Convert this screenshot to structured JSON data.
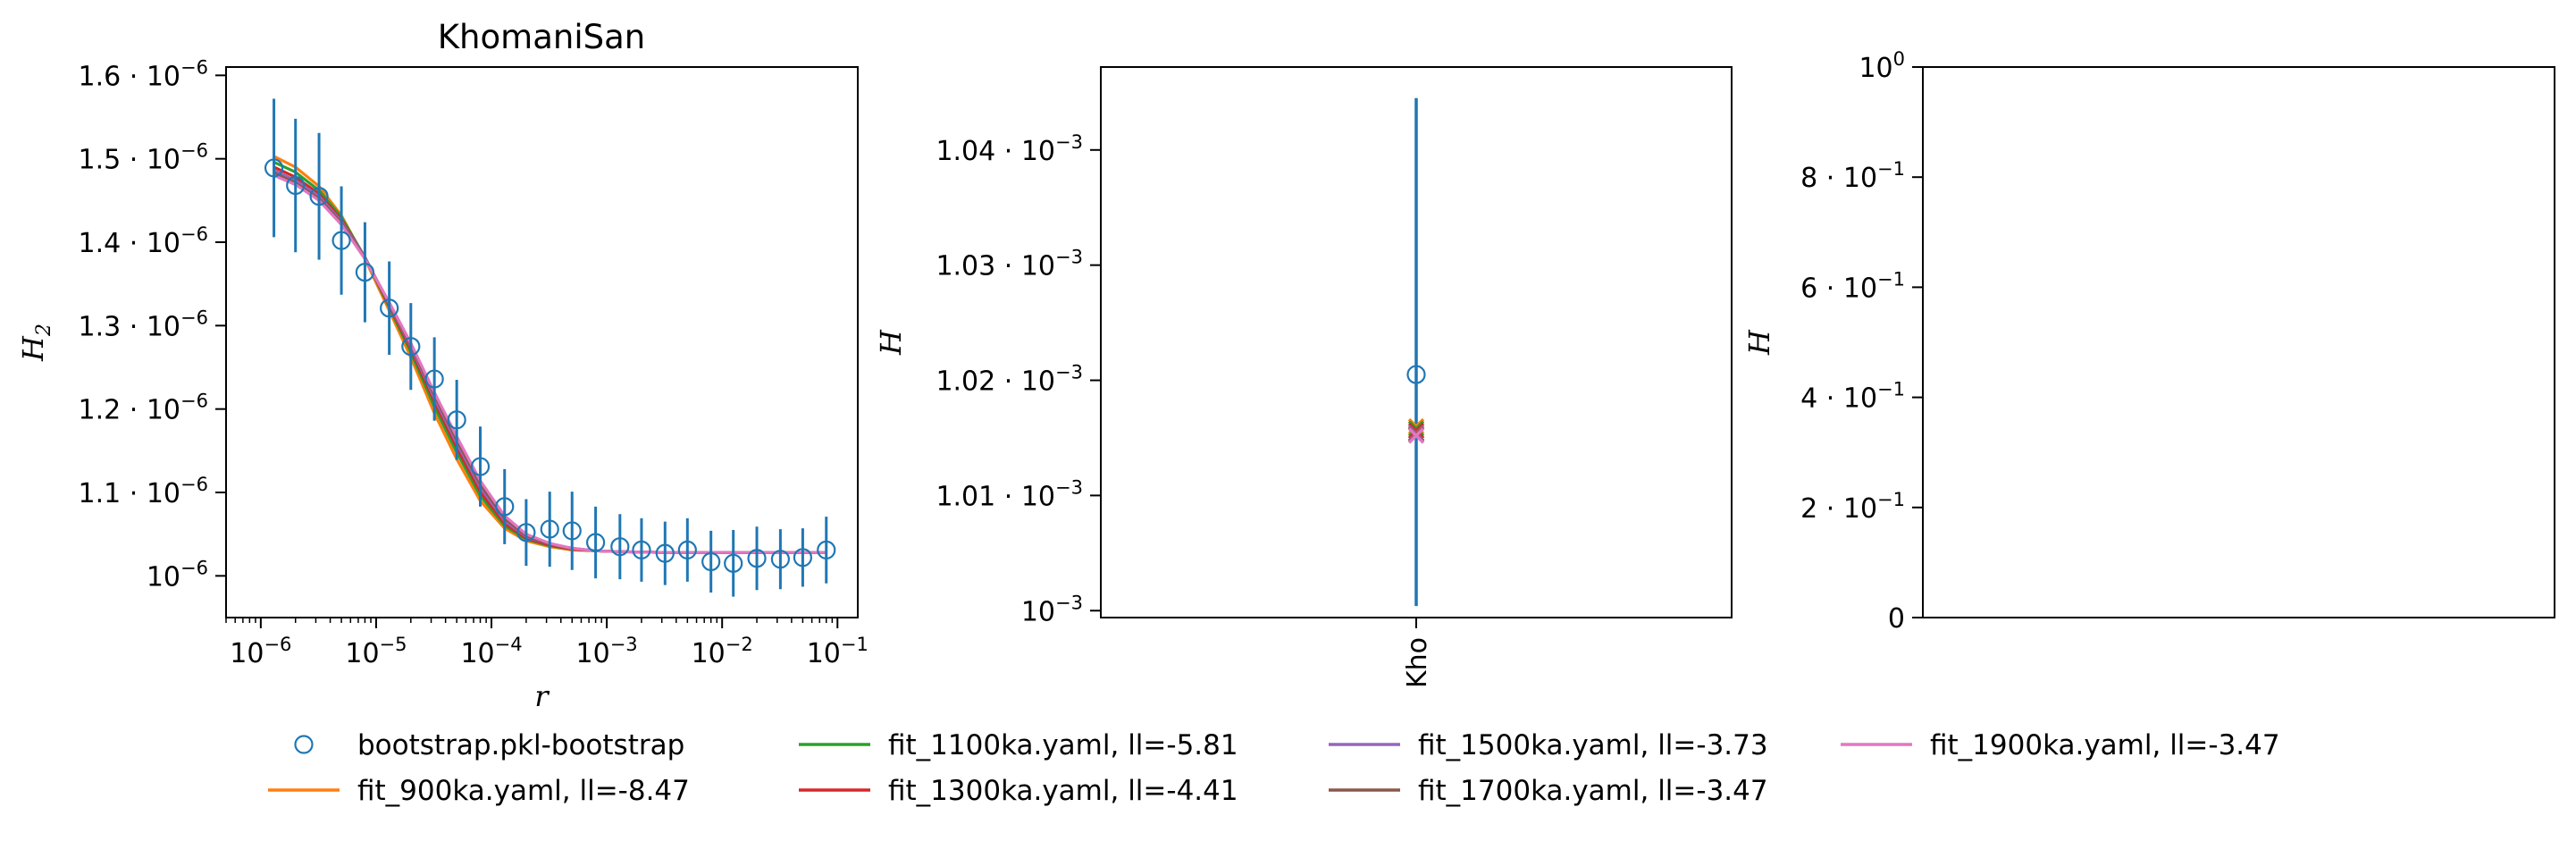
{
  "chart_data": [
    {
      "type": "line",
      "title": "KhomaniSan",
      "xlabel": "r",
      "ylabel": "H",
      "ylabel_sub": "2",
      "xscale": "log",
      "xlim": [
        5e-07,
        0.15
      ],
      "ylim": [
        9.5e-07,
        1.61e-06
      ],
      "xticks": [
        {
          "value": 1e-06,
          "mant": "10",
          "exp": "−6"
        },
        {
          "value": 1e-05,
          "mant": "10",
          "exp": "−5"
        },
        {
          "value": 0.0001,
          "mant": "10",
          "exp": "−4"
        },
        {
          "value": 0.001,
          "mant": "10",
          "exp": "−3"
        },
        {
          "value": 0.01,
          "mant": "10",
          "exp": "−2"
        },
        {
          "value": 0.1,
          "mant": "10",
          "exp": "−1"
        }
      ],
      "yticks": [
        {
          "value": 1e-06,
          "mant": "10",
          "exp": "−6"
        },
        {
          "value": 1.1e-06,
          "mant": "1.1 · 10",
          "exp": "−6"
        },
        {
          "value": 1.2e-06,
          "mant": "1.2 · 10",
          "exp": "−6"
        },
        {
          "value": 1.3e-06,
          "mant": "1.3 · 10",
          "exp": "−6"
        },
        {
          "value": 1.4e-06,
          "mant": "1.4 · 10",
          "exp": "−6"
        },
        {
          "value": 1.5e-06,
          "mant": "1.5 · 10",
          "exp": "−6"
        },
        {
          "value": 1.6e-06,
          "mant": "1.6 · 10",
          "exp": "−6"
        }
      ],
      "data": {
        "name": "bootstrap.pkl-bootstrap",
        "color": "#1f77b4",
        "x": [
          1.3e-06,
          2e-06,
          3.2e-06,
          5e-06,
          8e-06,
          1.3e-05,
          2e-05,
          3.2e-05,
          5e-05,
          8e-05,
          0.00013,
          0.0002,
          0.00032,
          0.0005,
          0.0008,
          0.0013,
          0.002,
          0.0032,
          0.005,
          0.008,
          0.0125,
          0.02,
          0.032,
          0.05,
          0.08
        ],
        "y": [
          1.489e-06,
          1.468e-06,
          1.455e-06,
          1.402e-06,
          1.364e-06,
          1.321e-06,
          1.275e-06,
          1.236e-06,
          1.187e-06,
          1.131e-06,
          1.083e-06,
          1.052e-06,
          1.056e-06,
          1.054e-06,
          1.04e-06,
          1.035e-06,
          1.031e-06,
          1.027e-06,
          1.031e-06,
          1.017e-06,
          1.015e-06,
          1.021e-06,
          1.02e-06,
          1.022e-06,
          1.031e-06
        ],
        "yerr": [
          8.3e-08,
          8e-08,
          7.6e-08,
          6.5e-08,
          6e-08,
          5.6e-08,
          5.2e-08,
          5e-08,
          4.8e-08,
          4.8e-08,
          4.5e-08,
          4e-08,
          4.5e-08,
          4.7e-08,
          4.3e-08,
          3.9e-08,
          3.8e-08,
          3.8e-08,
          3.8e-08,
          3.7e-08,
          4e-08,
          3.8e-08,
          3.6e-08,
          3.5e-08,
          4e-08
        ]
      },
      "fit_x": [
        1.3e-06,
        2e-06,
        3.2e-06,
        5e-06,
        8e-06,
        1.3e-05,
        2e-05,
        3.2e-05,
        5e-05,
        8e-05,
        0.00013,
        0.0002,
        0.00032,
        0.0005,
        0.0008,
        0.0013,
        0.0032,
        0.01,
        0.032,
        0.08
      ],
      "fits": [
        {
          "name": "fit_900ka.yaml, ll=-8.47",
          "color": "#ff7f0e",
          "y": [
            1.503e-06,
            1.49e-06,
            1.467e-06,
            1.432e-06,
            1.38e-06,
            1.318e-06,
            1.262e-06,
            1.195e-06,
            1.14e-06,
            1.09e-06,
            1.057e-06,
            1.042e-06,
            1.035e-06,
            1.031e-06,
            1.03e-06,
            1.029e-06,
            1.028e-06,
            1.028e-06,
            1.028e-06,
            1.028e-06
          ]
        },
        {
          "name": "fit_1100ka.yaml, ll=-5.81",
          "color": "#2ca02c",
          "y": [
            1.496e-06,
            1.484e-06,
            1.462e-06,
            1.43e-06,
            1.382e-06,
            1.322e-06,
            1.268e-06,
            1.203e-06,
            1.148e-06,
            1.096e-06,
            1.06e-06,
            1.044e-06,
            1.036e-06,
            1.032e-06,
            1.03e-06,
            1.029e-06,
            1.028e-06,
            1.028e-06,
            1.028e-06,
            1.028e-06
          ]
        },
        {
          "name": "fit_1300ka.yaml, ll=-4.41",
          "color": "#d62728",
          "y": [
            1.49e-06,
            1.478e-06,
            1.458e-06,
            1.427e-06,
            1.382e-06,
            1.324e-06,
            1.272e-06,
            1.209e-06,
            1.154e-06,
            1.101e-06,
            1.063e-06,
            1.045e-06,
            1.037e-06,
            1.032e-06,
            1.03e-06,
            1.029e-06,
            1.028e-06,
            1.028e-06,
            1.028e-06,
            1.028e-06
          ]
        },
        {
          "name": "fit_1500ka.yaml, ll=-3.73",
          "color": "#9467bd",
          "y": [
            1.486e-06,
            1.474e-06,
            1.455e-06,
            1.425e-06,
            1.382e-06,
            1.326e-06,
            1.275e-06,
            1.213e-06,
            1.159e-06,
            1.106e-06,
            1.066e-06,
            1.047e-06,
            1.038e-06,
            1.033e-06,
            1.03e-06,
            1.029e-06,
            1.028e-06,
            1.028e-06,
            1.028e-06,
            1.028e-06
          ]
        },
        {
          "name": "fit_1700ka.yaml, ll=-3.47",
          "color": "#8c564b",
          "y": [
            1.483e-06,
            1.471e-06,
            1.452e-06,
            1.423e-06,
            1.381e-06,
            1.327e-06,
            1.277e-06,
            1.217e-06,
            1.163e-06,
            1.11e-06,
            1.069e-06,
            1.048e-06,
            1.038e-06,
            1.033e-06,
            1.03e-06,
            1.029e-06,
            1.028e-06,
            1.028e-06,
            1.028e-06,
            1.028e-06
          ]
        },
        {
          "name": "fit_1900ka.yaml, ll=-3.47",
          "color": "#e377c2",
          "y": [
            1.48e-06,
            1.469e-06,
            1.45e-06,
            1.421e-06,
            1.38e-06,
            1.328e-06,
            1.279e-06,
            1.22e-06,
            1.167e-06,
            1.114e-06,
            1.072e-06,
            1.05e-06,
            1.039e-06,
            1.033e-06,
            1.03e-06,
            1.029e-06,
            1.028e-06,
            1.028e-06,
            1.028e-06,
            1.028e-06
          ]
        }
      ]
    },
    {
      "type": "scatter",
      "ylabel": "H",
      "ylim": [
        0.0009994,
        0.0010472
      ],
      "categories": [
        "Kho"
      ],
      "yticks": [
        {
          "value": 0.001,
          "mant": "10",
          "exp": "−3"
        },
        {
          "value": 0.00101,
          "mant": "1.01 · 10",
          "exp": "−3"
        },
        {
          "value": 0.00102,
          "mant": "1.02 · 10",
          "exp": "−3"
        },
        {
          "value": 0.00103,
          "mant": "1.03 · 10",
          "exp": "−3"
        },
        {
          "value": 0.00104,
          "mant": "1.04 · 10",
          "exp": "−3"
        }
      ],
      "point": {
        "y": 0.0010205,
        "ymin": 0.0010004,
        "ymax": 0.0010445,
        "color": "#1f77b4"
      },
      "fit_marks": [
        {
          "color": "#ff7f0e",
          "y": 0.001016
        },
        {
          "color": "#2ca02c",
          "y": 0.0010158
        },
        {
          "color": "#d62728",
          "y": 0.0010156
        },
        {
          "color": "#9467bd",
          "y": 0.0010154
        },
        {
          "color": "#8c564b",
          "y": 0.0010153
        },
        {
          "color": "#e377c2",
          "y": 0.0010152
        }
      ]
    },
    {
      "type": "line",
      "ylabel": "H",
      "ylim": [
        0,
        1
      ],
      "yticks": [
        {
          "value": 0,
          "mant": "0",
          "exp": ""
        },
        {
          "value": 0.2,
          "mant": "2 · 10",
          "exp": "−1"
        },
        {
          "value": 0.4,
          "mant": "4 · 10",
          "exp": "−1"
        },
        {
          "value": 0.6,
          "mant": "6 · 10",
          "exp": "−1"
        },
        {
          "value": 0.8,
          "mant": "8 · 10",
          "exp": "−1"
        },
        {
          "value": 1.0,
          "mant": "10",
          "exp": "0"
        }
      ]
    }
  ],
  "legend": {
    "placement": "bottom",
    "items": [
      {
        "label": "bootstrap.pkl-bootstrap",
        "kind": "marker",
        "color": "#1f77b4"
      },
      {
        "label": "fit_900ka.yaml, ll=-8.47",
        "kind": "line",
        "color": "#ff7f0e"
      },
      {
        "label": "fit_1100ka.yaml, ll=-5.81",
        "kind": "line",
        "color": "#2ca02c"
      },
      {
        "label": "fit_1300ka.yaml, ll=-4.41",
        "kind": "line",
        "color": "#d62728"
      },
      {
        "label": "fit_1500ka.yaml, ll=-3.73",
        "kind": "line",
        "color": "#9467bd"
      },
      {
        "label": "fit_1700ka.yaml, ll=-3.47",
        "kind": "line",
        "color": "#8c564b"
      },
      {
        "label": "fit_1900ka.yaml, ll=-3.47",
        "kind": "line",
        "color": "#e377c2"
      }
    ]
  }
}
